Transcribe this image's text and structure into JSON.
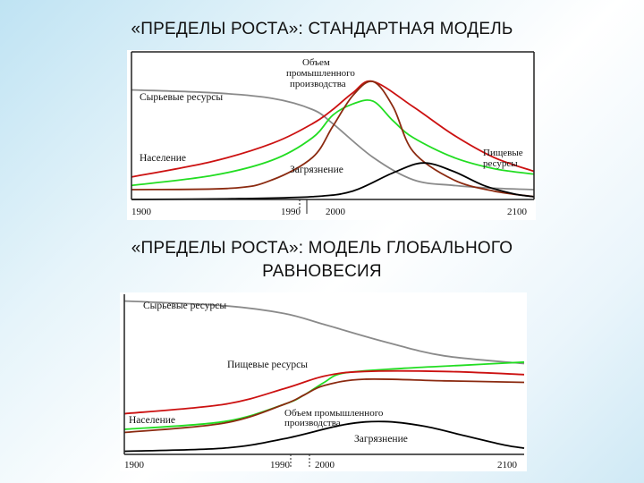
{
  "titles": {
    "top": "«ПРЕДЕЛЫ РОСТА»: СТАНДАРТНАЯ МОДЕЛЬ",
    "bottom_line1": "«ПРЕДЕЛЫ РОСТА»: МОДЕЛЬ ГЛОБАЛЬНОГО",
    "bottom_line2": "РАВНОВЕСИЯ"
  },
  "chart_data": [
    {
      "type": "line",
      "xlim": [
        1900,
        2100
      ],
      "ylim": [
        0,
        100
      ],
      "x_ticks": [
        "1900",
        "1990",
        "2000",
        "2100"
      ],
      "grid": false,
      "series": [
        {
          "name": "Сырьевые ресурсы",
          "color": "#8a8a8a",
          "points": [
            [
              1900,
              78
            ],
            [
              1940,
              76
            ],
            [
              1970,
              72
            ],
            [
              1990,
              64
            ],
            [
              2000,
              54
            ],
            [
              2020,
              30
            ],
            [
              2040,
              14
            ],
            [
              2060,
              10
            ],
            [
              2080,
              8
            ],
            [
              2100,
              7
            ]
          ]
        },
        {
          "name": "Пищевые ресурсы",
          "color": "#22dd22",
          "points": [
            [
              1900,
              10
            ],
            [
              1940,
              17
            ],
            [
              1970,
              28
            ],
            [
              1990,
              44
            ],
            [
              2000,
              60
            ],
            [
              2010,
              68
            ],
            [
              2020,
              70
            ],
            [
              2030,
              56
            ],
            [
              2040,
              44
            ],
            [
              2060,
              30
            ],
            [
              2080,
              22
            ],
            [
              2100,
              18
            ]
          ]
        },
        {
          "name": "Население",
          "color": "#cc1111",
          "points": [
            [
              1900,
              16
            ],
            [
              1940,
              27
            ],
            [
              1970,
              40
            ],
            [
              1990,
              54
            ],
            [
              2000,
              64
            ],
            [
              2010,
              76
            ],
            [
              2020,
              84
            ],
            [
              2040,
              66
            ],
            [
              2060,
              46
            ],
            [
              2080,
              30
            ],
            [
              2100,
              20
            ]
          ]
        },
        {
          "name": "Объем промышленного производства",
          "color": "#8b2a10",
          "points": [
            [
              1900,
              7
            ],
            [
              1950,
              8
            ],
            [
              1970,
              14
            ],
            [
              1990,
              30
            ],
            [
              2000,
              52
            ],
            [
              2010,
              74
            ],
            [
              2020,
              84
            ],
            [
              2030,
              66
            ],
            [
              2040,
              34
            ],
            [
              2060,
              14
            ],
            [
              2080,
              6
            ],
            [
              2100,
              2
            ]
          ]
        },
        {
          "name": "Загрязнение",
          "color": "#000000",
          "points": [
            [
              1900,
              0
            ],
            [
              1950,
              0.5
            ],
            [
              1990,
              2
            ],
            [
              2010,
              6
            ],
            [
              2030,
              19
            ],
            [
              2045,
              26
            ],
            [
              2060,
              20
            ],
            [
              2075,
              10
            ],
            [
              2090,
              4
            ],
            [
              2100,
              2
            ]
          ]
        }
      ],
      "annotations": [
        "Сырьевые ресурсы",
        "Объем промышленного производства",
        "Население",
        "Загрязнение",
        "Пищевые ресурсы"
      ]
    },
    {
      "type": "line",
      "xlim": [
        1900,
        2100
      ],
      "ylim": [
        0,
        100
      ],
      "x_ticks": [
        "1900",
        "1990",
        "2000",
        "2100"
      ],
      "grid": false,
      "series": [
        {
          "name": "Сырьевые ресурсы",
          "color": "#8a8a8a",
          "points": [
            [
              1900,
              98
            ],
            [
              1950,
              95
            ],
            [
              1980,
              90
            ],
            [
              2000,
              83
            ],
            [
              2030,
              72
            ],
            [
              2060,
              63
            ],
            [
              2100,
              58
            ]
          ]
        },
        {
          "name": "Пищевые ресурсы",
          "color": "#22dd22",
          "points": [
            [
              1900,
              16
            ],
            [
              1950,
              21
            ],
            [
              1980,
              32
            ],
            [
              1990,
              38
            ],
            [
              2000,
              46
            ],
            [
              2010,
              52
            ],
            [
              2040,
              55
            ],
            [
              2070,
              57
            ],
            [
              2100,
              59
            ]
          ]
        },
        {
          "name": "Население",
          "color": "#cc1111",
          "points": [
            [
              1900,
              26
            ],
            [
              1950,
              32
            ],
            [
              1980,
              42
            ],
            [
              2000,
              50
            ],
            [
              2020,
              53
            ],
            [
              2060,
              53
            ],
            [
              2100,
              51
            ]
          ]
        },
        {
          "name": "Объем промышленного производства",
          "color": "#8b2a10",
          "points": [
            [
              1900,
              14
            ],
            [
              1950,
              20
            ],
            [
              1980,
              32
            ],
            [
              1990,
              38
            ],
            [
              2000,
              44
            ],
            [
              2020,
              48
            ],
            [
              2060,
              47
            ],
            [
              2100,
              46
            ]
          ]
        },
        {
          "name": "Загрязнение",
          "color": "#000000",
          "points": [
            [
              1900,
              2
            ],
            [
              1950,
              4
            ],
            [
              1980,
              10
            ],
            [
              2010,
              19
            ],
            [
              2030,
              21
            ],
            [
              2050,
              18
            ],
            [
              2070,
              12
            ],
            [
              2090,
              6
            ],
            [
              2100,
              4
            ]
          ]
        }
      ],
      "annotations": [
        "Сырьевые ресурсы",
        "Пищевые ресурсы",
        "Население",
        "Объем промышленного производства",
        "Загрязнение"
      ]
    }
  ]
}
